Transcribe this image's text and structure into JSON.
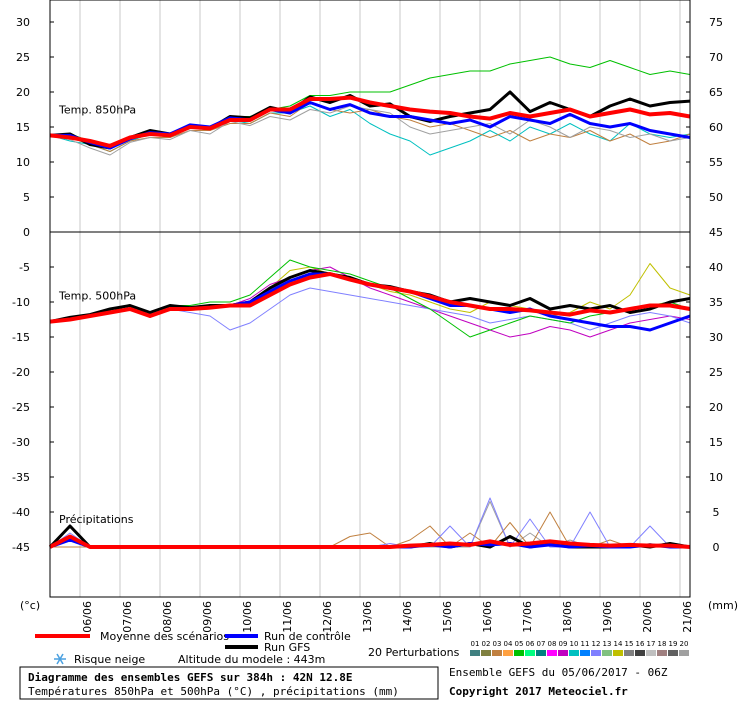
{
  "chart_data": {
    "type": "line",
    "title": "Diagramme des ensembles GEFS sur 384h : 42N 12.8E",
    "subtitle": "Températures 850hPa et 500hPa (°C) , précipitations (mm)",
    "ylabel": "(°c)",
    "y2label": "(mm)",
    "run_label": "Ensemble GEFS du 05/06/2017 - 06Z",
    "copyright": "Copyright 2017 Meteociel.fr",
    "snow_label": "Risque neige",
    "altitude_label": "Altitude du modele : 443m",
    "perturbations_label": "20 Perturbations",
    "x": [
      0,
      12,
      24,
      36,
      48,
      60,
      72,
      84,
      96,
      108,
      120,
      132,
      144,
      156,
      168,
      180,
      192,
      204,
      216,
      228,
      240,
      252,
      264,
      276,
      288,
      300,
      312,
      324,
      336,
      348,
      360,
      372,
      384
    ],
    "xlim": [
      0,
      384
    ],
    "xticks": [
      {
        "value": 18,
        "label": "06/06"
      },
      {
        "value": 42,
        "label": "07/06"
      },
      {
        "value": 66,
        "label": "08/06"
      },
      {
        "value": 90,
        "label": "09/06"
      },
      {
        "value": 114,
        "label": "10/06"
      },
      {
        "value": 138,
        "label": "11/06"
      },
      {
        "value": 162,
        "label": "12/06"
      },
      {
        "value": 186,
        "label": "13/06"
      },
      {
        "value": 210,
        "label": "14/06"
      },
      {
        "value": 234,
        "label": "15/06"
      },
      {
        "value": 258,
        "label": "16/06"
      },
      {
        "value": 282,
        "label": "17/06"
      },
      {
        "value": 306,
        "label": "18/06"
      },
      {
        "value": 330,
        "label": "19/06"
      },
      {
        "value": 354,
        "label": "20/06"
      },
      {
        "value": 378,
        "label": "21/06"
      }
    ],
    "ylim": [
      -52,
      33
    ],
    "yticks": [
      30,
      25,
      20,
      15,
      10,
      5,
      0,
      -5,
      -10,
      -15,
      -20,
      -25,
      -30,
      -35,
      -40,
      -45
    ],
    "y2lim": [
      -7,
      78
    ],
    "y2ticks": [
      75,
      70,
      65,
      60,
      55,
      50,
      45,
      40,
      35,
      30,
      25,
      20,
      15,
      10,
      5,
      0
    ],
    "grid": true,
    "legend": [
      {
        "name": "Moyenne des scénarios",
        "color": "#ff0000"
      },
      {
        "name": "Run de contrôle",
        "color": "#0000ff"
      },
      {
        "name": "Run GFS",
        "color": "#000000"
      }
    ],
    "perturbations": [
      {
        "name": "01",
        "color": "#408080"
      },
      {
        "name": "02",
        "color": "#808040"
      },
      {
        "name": "03",
        "color": "#c08040"
      },
      {
        "name": "04",
        "color": "#ffa040"
      },
      {
        "name": "05",
        "color": "#00c000"
      },
      {
        "name": "06",
        "color": "#00ff80"
      },
      {
        "name": "07",
        "color": "#008080"
      },
      {
        "name": "08",
        "color": "#ff00ff"
      },
      {
        "name": "09",
        "color": "#c000c0"
      },
      {
        "name": "10",
        "color": "#00c0c0"
      },
      {
        "name": "11",
        "color": "#0080ff"
      },
      {
        "name": "12",
        "color": "#8080ff"
      },
      {
        "name": "13",
        "color": "#80c080"
      },
      {
        "name": "14",
        "color": "#c0c000"
      },
      {
        "name": "15",
        "color": "#808080"
      },
      {
        "name": "16",
        "color": "#404040"
      },
      {
        "name": "17",
        "color": "#c0c0c0"
      },
      {
        "name": "18",
        "color": "#a08080"
      },
      {
        "name": "19",
        "color": "#606060"
      },
      {
        "name": "20",
        "color": "#a0a0a0"
      }
    ],
    "panels": [
      {
        "label": "Temp. 850hPa",
        "axis": "y",
        "mean": [
          13.8,
          13.5,
          13,
          12.3,
          13.5,
          14,
          13.8,
          15,
          14.8,
          16,
          16,
          17.5,
          17.5,
          19,
          19,
          19.2,
          18.5,
          18,
          17.5,
          17.2,
          17,
          16.5,
          16.2,
          17,
          16.5,
          17,
          17.5,
          16.5,
          17,
          17.5,
          16.8,
          17,
          16.5
        ],
        "control": [
          13.8,
          13.8,
          12.8,
          12,
          13.3,
          14.2,
          14,
          15.3,
          15,
          16.3,
          16,
          17.5,
          17,
          18.5,
          17.5,
          18.2,
          17,
          16.5,
          16.5,
          16,
          15.5,
          16,
          15,
          16.5,
          16,
          15.5,
          16.8,
          15.5,
          15,
          15.5,
          14.5,
          14,
          13.5
        ],
        "gfs": [
          13.8,
          14,
          12.5,
          12,
          13.5,
          14.5,
          14,
          15,
          14.8,
          16.5,
          16.3,
          17.8,
          17.2,
          19.3,
          18.5,
          19.5,
          18,
          18.3,
          16.5,
          15.8,
          16.5,
          17,
          17.5,
          20,
          17.2,
          18.5,
          17.5,
          16.5,
          18,
          19,
          18,
          18.5,
          18.7
        ],
        "members": [
          {
            "member": 4,
            "values": [
              13.8,
              14,
              13,
              12,
              13.5,
              14,
              14,
              15,
              15,
              16.5,
              16.5,
              17.5,
              18,
              19.5,
              19.5,
              20,
              20,
              20,
              21,
              22,
              22.5,
              23,
              23,
              24,
              24.5,
              25,
              24,
              23.5,
              24.5,
              23.5,
              22.5,
              23,
              22.5
            ]
          },
          {
            "member": 9,
            "values": [
              13.8,
              13,
              12.5,
              11.5,
              13,
              14,
              13.5,
              15,
              14.5,
              16,
              15.5,
              17,
              17,
              18,
              16.5,
              17.5,
              15.5,
              14,
              13,
              11,
              12,
              13,
              14.5,
              13,
              15,
              14,
              15.5,
              14,
              13,
              15.5,
              14,
              13.5,
              14
            ]
          },
          {
            "member": 2,
            "values": [
              13.8,
              13.5,
              12.5,
              11.5,
              13,
              13.5,
              13.5,
              14.5,
              14.5,
              15.5,
              15.5,
              17,
              16.5,
              18.5,
              17.5,
              17,
              17.5,
              16.5,
              16,
              15,
              15.5,
              14.5,
              13.5,
              14.5,
              13,
              14,
              13.5,
              14.5,
              13,
              14,
              12.5,
              13,
              14
            ]
          },
          {
            "member": 19,
            "values": [
              13.8,
              13.2,
              12,
              11,
              12.8,
              13.5,
              13.2,
              14.5,
              14,
              15.8,
              15.2,
              16.5,
              16,
              17.5,
              17,
              18,
              17.5,
              17,
              15,
              14,
              14.5,
              15,
              15.5,
              14,
              16,
              15,
              13.5,
              15,
              14.5,
              13.5,
              14,
              13,
              13.5
            ]
          }
        ]
      },
      {
        "label": "Temp. 500hPa",
        "axis": "y",
        "mean": [
          -12.8,
          -12.5,
          -12,
          -11.5,
          -11,
          -12,
          -11,
          -11,
          -10.8,
          -10.5,
          -10.5,
          -9,
          -7.5,
          -6.5,
          -6,
          -6.8,
          -7.5,
          -8,
          -8.5,
          -9.2,
          -10,
          -10.5,
          -11,
          -11,
          -11.2,
          -11.5,
          -11.8,
          -11.2,
          -11.5,
          -11,
          -10.5,
          -10.5,
          -11
        ],
        "control": [
          -12.8,
          -12.5,
          -12,
          -11.5,
          -11,
          -12,
          -11,
          -11,
          -10.8,
          -10.5,
          -10,
          -8.5,
          -7,
          -6,
          -6,
          -6.8,
          -7.5,
          -8,
          -8.5,
          -9.5,
          -10.5,
          -10.5,
          -11,
          -11.5,
          -11,
          -12,
          -12.5,
          -13,
          -13.5,
          -13.5,
          -14,
          -13,
          -12
        ],
        "gfs": [
          -12.8,
          -12.2,
          -11.8,
          -11,
          -10.5,
          -11.5,
          -10.5,
          -10.8,
          -10.5,
          -10.5,
          -10,
          -8,
          -6.5,
          -5.5,
          -6,
          -6.5,
          -7.5,
          -7.8,
          -8.5,
          -9,
          -10,
          -9.5,
          -10,
          -10.5,
          -9.5,
          -11,
          -10.5,
          -11,
          -10.5,
          -11.5,
          -11,
          -10,
          -9.5
        ],
        "members": [
          {
            "member": 13,
            "values": [
              -12.8,
              -12.5,
              -12,
              -11.5,
              -11,
              -12,
              -11,
              -11.2,
              -11,
              -10.5,
              -10,
              -8,
              -5.5,
              -5,
              -6,
              -6.5,
              -7.5,
              -8.5,
              -9,
              -10,
              -11,
              -11.5,
              -10,
              -10.5,
              -11,
              -12,
              -11.5,
              -10,
              -11,
              -9,
              -4.5,
              -8,
              -9
            ]
          },
          {
            "member": 8,
            "values": [
              -12.8,
              -12.5,
              -12,
              -11.5,
              -11,
              -12,
              -11,
              -11,
              -10.8,
              -10.5,
              -9.5,
              -7.5,
              -6.5,
              -5.5,
              -5,
              -6.5,
              -8,
              -9,
              -10,
              -11,
              -12,
              -13,
              -14,
              -15,
              -14.5,
              -13.5,
              -14,
              -15,
              -14,
              -13,
              -12.5,
              -12,
              -12.5
            ]
          },
          {
            "member": 11,
            "values": [
              -12.8,
              -12.5,
              -12,
              -11.5,
              -11,
              -12,
              -11,
              -11.5,
              -12,
              -14,
              -13,
              -11,
              -9,
              -8,
              -8.5,
              -9,
              -9.5,
              -10,
              -10.5,
              -11,
              -11.5,
              -12,
              -13,
              -12.5,
              -12,
              -12.5,
              -13,
              -14,
              -13,
              -12,
              -11.5,
              -12,
              -13
            ]
          },
          {
            "member": 4,
            "values": [
              -12.8,
              -12.3,
              -12,
              -11,
              -11,
              -11.5,
              -10.5,
              -10.5,
              -10,
              -10,
              -9,
              -6.5,
              -4,
              -5,
              -5.5,
              -6,
              -7,
              -8,
              -9.5,
              -11,
              -13,
              -15,
              -14,
              -13,
              -12,
              -12.5,
              -13,
              -12,
              -11.5,
              -11,
              -10.5,
              -10,
              -11
            ]
          }
        ]
      },
      {
        "label": "Précipitations",
        "axis": "y2",
        "mean": [
          0,
          1.5,
          0,
          0,
          0,
          0,
          0,
          0,
          0,
          0,
          0,
          0,
          0,
          0,
          0,
          0,
          0,
          0,
          0.2,
          0.3,
          0.5,
          0.3,
          0.8,
          0.3,
          0.5,
          0.8,
          0.5,
          0.3,
          0.2,
          0.3,
          0.2,
          0.2,
          0
        ],
        "control": [
          0,
          1,
          0,
          0,
          0,
          0,
          0,
          0,
          0,
          0,
          0,
          0,
          0,
          0,
          0,
          0,
          0,
          0,
          0,
          0.3,
          0,
          0.5,
          0.3,
          0.5,
          0,
          0.3,
          0,
          0.2,
          0,
          0,
          0.3,
          0,
          0
        ],
        "gfs": [
          0,
          3,
          0,
          0,
          0,
          0,
          0,
          0,
          0,
          0,
          0,
          0,
          0,
          0,
          0,
          0,
          0,
          0,
          0,
          0.5,
          0,
          0.5,
          0,
          1.5,
          0,
          0.5,
          0,
          0,
          0,
          0.3,
          0,
          0.5,
          0
        ],
        "members": [
          {
            "member": 19,
            "values": [
              0,
              0,
              0,
              0,
              0,
              0,
              0,
              0,
              0,
              0,
              0,
              0,
              0,
              0,
              0,
              0,
              0,
              0,
              0,
              0,
              0,
              0,
              6.5,
              0,
              2,
              0,
              1,
              0,
              0,
              0,
              0,
              0,
              0
            ]
          },
          {
            "member": 2,
            "values": [
              0,
              0,
              0,
              0,
              0,
              0,
              0,
              0,
              0,
              0,
              0,
              0,
              0,
              0,
              0,
              1.5,
              2,
              0,
              1,
              3,
              0,
              2,
              0,
              3.5,
              0,
              5,
              0,
              0,
              1,
              0,
              0.5,
              0,
              0
            ]
          },
          {
            "member": 11,
            "values": [
              0,
              2,
              0,
              0,
              0,
              0,
              0,
              0,
              0,
              0,
              0,
              0,
              0,
              0,
              0,
              0,
              0,
              0.5,
              0,
              0,
              3,
              0,
              7,
              0,
              4,
              0,
              0,
              5,
              0,
              0,
              3,
              0,
              0
            ]
          }
        ]
      }
    ]
  }
}
